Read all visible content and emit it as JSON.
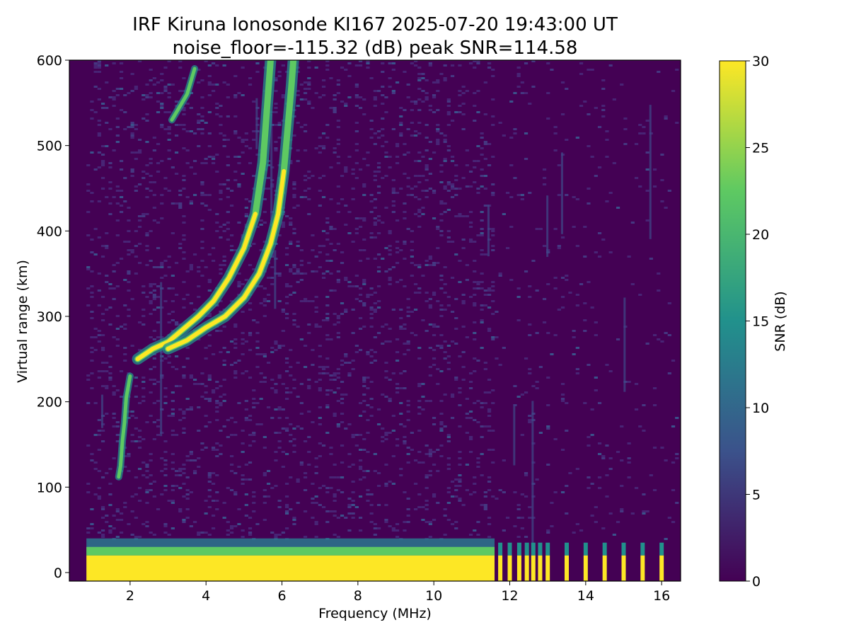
{
  "chart_data": {
    "type": "heatmap",
    "title": "IRF Kiruna Ionosonde KI167 2025-07-20 19:43:00  UT",
    "subtitle": "noise_floor=-115.32 (dB) peak SNR=114.58",
    "xlabel": "Frequency (MHz)",
    "ylabel": "Virtual range (km)",
    "xlim": [
      0.4,
      16.5
    ],
    "ylim": [
      -10,
      600
    ],
    "x_ticks": [
      "2",
      "4",
      "6",
      "8",
      "10",
      "12",
      "14",
      "16"
    ],
    "y_ticks": [
      "0",
      "100",
      "200",
      "300",
      "400",
      "500",
      "600"
    ],
    "colorbar": {
      "label": "SNR (dB)",
      "range": [
        0,
        30
      ],
      "ticks": [
        "0",
        "5",
        "10",
        "15",
        "20",
        "25",
        "30"
      ],
      "colormap": [
        "#440154",
        "#3b528b",
        "#21918c",
        "#5ec962",
        "#fde725"
      ]
    },
    "data_start_mhz": 0.85,
    "traces": [
      {
        "freq": [
          2.2,
          2.6,
          3.0,
          3.4,
          3.8,
          4.2,
          4.6,
          5.0,
          5.3,
          5.5,
          5.6,
          5.7
        ],
        "range": [
          250,
          262,
          270,
          285,
          300,
          318,
          345,
          380,
          420,
          480,
          540,
          600
        ]
      },
      {
        "freq": [
          3.0,
          3.5,
          4.0,
          4.5,
          5.0,
          5.4,
          5.7,
          5.9,
          6.05,
          6.15,
          6.25,
          6.3
        ],
        "range": [
          262,
          272,
          287,
          300,
          322,
          350,
          385,
          420,
          470,
          520,
          570,
          600
        ]
      },
      {
        "freq": [
          1.7,
          1.75,
          1.8,
          1.85,
          1.9,
          2.0
        ],
        "range": [
          112,
          125,
          155,
          175,
          205,
          230
        ]
      },
      {
        "freq": [
          3.1,
          3.3,
          3.5,
          3.7
        ],
        "range": [
          530,
          545,
          560,
          590
        ]
      }
    ],
    "ground_echo": {
      "range_max": 20,
      "freq_max": 11.6
    },
    "discrete_channels_mhz": [
      11.75,
      12.0,
      12.25,
      12.45,
      12.62,
      12.8,
      13.0,
      13.5,
      14.0,
      14.5,
      15.0,
      15.5,
      16.0
    ]
  }
}
